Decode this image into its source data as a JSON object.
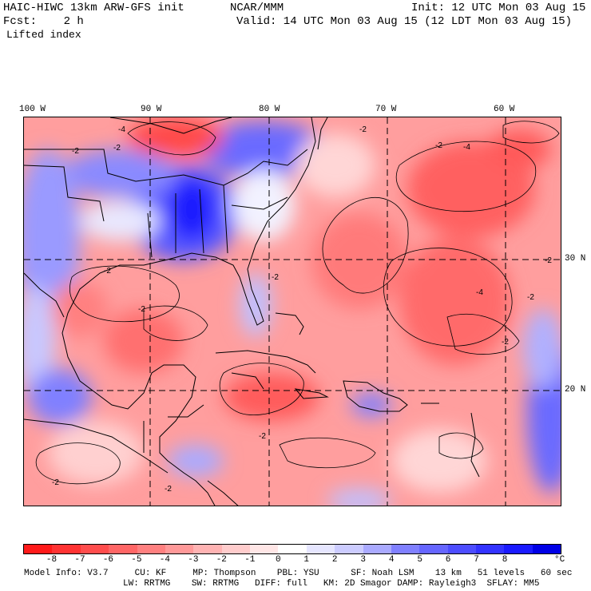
{
  "header": {
    "title": "HAIC-HIWC 13km ARW-GFS init",
    "org": "NCAR/MMM",
    "fcst": "Fcst:    2 h",
    "init": "Init: 12 UTC Mon 03 Aug 15",
    "valid": "Valid: 14 UTC Mon 03 Aug 15 (12 LDT Mon 03 Aug 15)",
    "field": "Lifted index"
  },
  "map": {
    "lon_labels": [
      "100 W",
      "90 W",
      "80 W",
      "70 W",
      "60 W"
    ],
    "lat_labels": [
      "30 N",
      "20 N"
    ],
    "contour_labels": [
      "-4",
      "-2",
      "-2",
      "-2",
      "-2",
      "-2",
      "-4",
      "-2",
      "-2",
      "-2",
      "-4",
      "-2",
      "-2",
      "-2",
      "-2",
      "-2"
    ]
  },
  "colorbar": {
    "ticks": [
      "-8",
      "-7",
      "-6",
      "-5",
      "-4",
      "-3",
      "-2",
      "-1",
      "0",
      "1",
      "2",
      "3",
      "4",
      "5",
      "6",
      "7",
      "8"
    ],
    "unit": "°C",
    "colors": [
      "#ff1a1a",
      "#ff3333",
      "#ff4d4d",
      "#ff6666",
      "#ff8080",
      "#ff9999",
      "#ffb3b3",
      "#ffcccc",
      "#ffe6e6",
      "#ffffff",
      "#e6e6ff",
      "#ccccff",
      "#aaaaff",
      "#8080ff",
      "#6666ff",
      "#4d4dff",
      "#3333ff",
      "#1a1aff",
      "#0000e6"
    ]
  },
  "footer": {
    "line1": "Model Info: V3.7     CU: KF     MP: Thompson    PBL: YSU      SF: Noah LSM    13 km   51 levels   60 sec",
    "line2": "LW: RRTMG    SW: RRTMG   DIFF: full   KM: 2D Smagor DAMP: Rayleigh3  SFLAY: MM5"
  }
}
